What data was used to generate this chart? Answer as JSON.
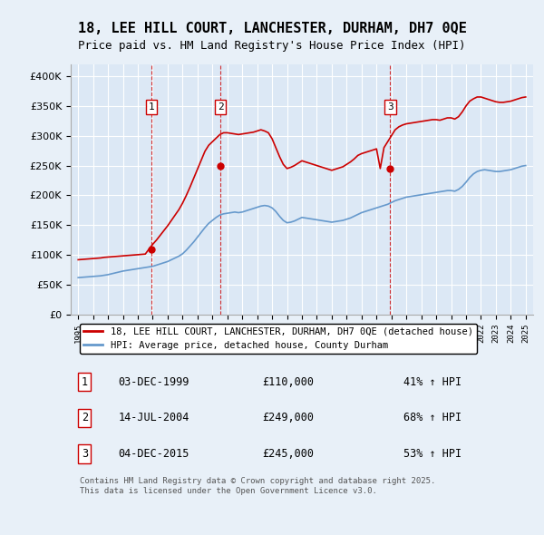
{
  "title": "18, LEE HILL COURT, LANCHESTER, DURHAM, DH7 0QE",
  "subtitle": "Price paid vs. HM Land Registry's House Price Index (HPI)",
  "background_color": "#e8f0f8",
  "plot_bg_color": "#dce8f5",
  "grid_color": "#ffffff",
  "legend_line1": "18, LEE HILL COURT, LANCHESTER, DURHAM, DH7 0QE (detached house)",
  "legend_line2": "HPI: Average price, detached house, County Durham",
  "footer": "Contains HM Land Registry data © Crown copyright and database right 2025.\nThis data is licensed under the Open Government Licence v3.0.",
  "transactions": [
    {
      "num": 1,
      "date": "03-DEC-1999",
      "price": 110000,
      "hpi_pct": "41% ↑ HPI",
      "x_year": 1999.92
    },
    {
      "num": 2,
      "date": "14-JUL-2004",
      "price": 249000,
      "hpi_pct": "68% ↑ HPI",
      "x_year": 2004.54
    },
    {
      "num": 3,
      "date": "04-DEC-2015",
      "price": 245000,
      "hpi_pct": "53% ↑ HPI",
      "x_year": 2015.92
    }
  ],
  "price_color": "#cc0000",
  "hpi_color": "#6699cc",
  "vline_color": "#cc0000",
  "ylim": [
    0,
    420000
  ],
  "yticks": [
    0,
    50000,
    100000,
    150000,
    200000,
    250000,
    300000,
    350000,
    400000
  ],
  "xlim_start": 1994.5,
  "xlim_end": 2025.5,
  "xticks": [
    1995,
    1996,
    1997,
    1998,
    1999,
    2000,
    2001,
    2002,
    2003,
    2004,
    2005,
    2006,
    2007,
    2008,
    2009,
    2010,
    2011,
    2012,
    2013,
    2014,
    2015,
    2016,
    2017,
    2018,
    2019,
    2020,
    2021,
    2022,
    2023,
    2024,
    2025
  ],
  "hpi_data": {
    "years": [
      1995,
      1995.25,
      1995.5,
      1995.75,
      1996,
      1996.25,
      1996.5,
      1996.75,
      1997,
      1997.25,
      1997.5,
      1997.75,
      1998,
      1998.25,
      1998.5,
      1998.75,
      1999,
      1999.25,
      1999.5,
      1999.75,
      2000,
      2000.25,
      2000.5,
      2000.75,
      2001,
      2001.25,
      2001.5,
      2001.75,
      2002,
      2002.25,
      2002.5,
      2002.75,
      2003,
      2003.25,
      2003.5,
      2003.75,
      2004,
      2004.25,
      2004.5,
      2004.75,
      2005,
      2005.25,
      2005.5,
      2005.75,
      2006,
      2006.25,
      2006.5,
      2006.75,
      2007,
      2007.25,
      2007.5,
      2007.75,
      2008,
      2008.25,
      2008.5,
      2008.75,
      2009,
      2009.25,
      2009.5,
      2009.75,
      2010,
      2010.25,
      2010.5,
      2010.75,
      2011,
      2011.25,
      2011.5,
      2011.75,
      2012,
      2012.25,
      2012.5,
      2012.75,
      2013,
      2013.25,
      2013.5,
      2013.75,
      2014,
      2014.25,
      2014.5,
      2014.75,
      2015,
      2015.25,
      2015.5,
      2015.75,
      2016,
      2016.25,
      2016.5,
      2016.75,
      2017,
      2017.25,
      2017.5,
      2017.75,
      2018,
      2018.25,
      2018.5,
      2018.75,
      2019,
      2019.25,
      2019.5,
      2019.75,
      2020,
      2020.25,
      2020.5,
      2020.75,
      2021,
      2021.25,
      2021.5,
      2021.75,
      2022,
      2022.25,
      2022.5,
      2022.75,
      2023,
      2023.25,
      2023.5,
      2023.75,
      2024,
      2024.25,
      2024.5,
      2024.75,
      2025
    ],
    "values": [
      62000,
      62500,
      63000,
      63500,
      64000,
      64500,
      65000,
      66000,
      67000,
      68500,
      70000,
      71500,
      73000,
      74000,
      75000,
      76000,
      77000,
      78000,
      79000,
      80000,
      81000,
      83000,
      85000,
      87000,
      89000,
      92000,
      95000,
      98000,
      102000,
      108000,
      115000,
      122000,
      130000,
      138000,
      146000,
      153000,
      158000,
      163000,
      167000,
      169000,
      170000,
      171000,
      172000,
      171000,
      172000,
      174000,
      176000,
      178000,
      180000,
      182000,
      183000,
      182000,
      179000,
      173000,
      165000,
      158000,
      154000,
      155000,
      157000,
      160000,
      163000,
      162000,
      161000,
      160000,
      159000,
      158000,
      157000,
      156000,
      155000,
      156000,
      157000,
      158000,
      160000,
      162000,
      165000,
      168000,
      171000,
      173000,
      175000,
      177000,
      179000,
      181000,
      183000,
      185000,
      188000,
      191000,
      193000,
      195000,
      197000,
      198000,
      199000,
      200000,
      201000,
      202000,
      203000,
      204000,
      205000,
      206000,
      207000,
      208000,
      208000,
      207000,
      210000,
      215000,
      222000,
      230000,
      236000,
      240000,
      242000,
      243000,
      242000,
      241000,
      240000,
      240000,
      241000,
      242000,
      243000,
      245000,
      247000,
      249000,
      250000
    ]
  },
  "price_data": {
    "years": [
      1995,
      1995.25,
      1995.5,
      1995.75,
      1996,
      1996.25,
      1996.5,
      1996.75,
      1997,
      1997.25,
      1997.5,
      1997.75,
      1998,
      1998.25,
      1998.5,
      1998.75,
      1999,
      1999.25,
      1999.5,
      1999.75,
      2000,
      2000.25,
      2000.5,
      2000.75,
      2001,
      2001.25,
      2001.5,
      2001.75,
      2002,
      2002.25,
      2002.5,
      2002.75,
      2003,
      2003.25,
      2003.5,
      2003.75,
      2004,
      2004.25,
      2004.5,
      2004.75,
      2005,
      2005.25,
      2005.5,
      2005.75,
      2006,
      2006.25,
      2006.5,
      2006.75,
      2007,
      2007.25,
      2007.5,
      2007.75,
      2008,
      2008.25,
      2008.5,
      2008.75,
      2009,
      2009.25,
      2009.5,
      2009.75,
      2010,
      2010.25,
      2010.5,
      2010.75,
      2011,
      2011.25,
      2011.5,
      2011.75,
      2012,
      2012.25,
      2012.5,
      2012.75,
      2013,
      2013.25,
      2013.5,
      2013.75,
      2014,
      2014.25,
      2014.5,
      2014.75,
      2015,
      2015.25,
      2015.5,
      2015.75,
      2016,
      2016.25,
      2016.5,
      2016.75,
      2017,
      2017.25,
      2017.5,
      2017.75,
      2018,
      2018.25,
      2018.5,
      2018.75,
      2019,
      2019.25,
      2019.5,
      2019.75,
      2020,
      2020.25,
      2020.5,
      2020.75,
      2021,
      2021.25,
      2021.5,
      2021.75,
      2022,
      2022.25,
      2022.5,
      2022.75,
      2023,
      2023.25,
      2023.5,
      2023.75,
      2024,
      2024.25,
      2024.5,
      2024.75,
      2025
    ],
    "values": [
      92000,
      92500,
      93000,
      93500,
      94000,
      94500,
      95000,
      96000,
      96500,
      97000,
      97500,
      98000,
      98500,
      99000,
      99500,
      100000,
      100500,
      101000,
      101500,
      110000,
      118000,
      125000,
      133000,
      141000,
      149000,
      158000,
      167000,
      176000,
      187000,
      200000,
      214000,
      229000,
      244000,
      259000,
      274000,
      284000,
      290000,
      296000,
      302000,
      305000,
      305000,
      304000,
      303000,
      302000,
      303000,
      304000,
      305000,
      306000,
      308000,
      310000,
      308000,
      305000,
      295000,
      280000,
      265000,
      252000,
      245000,
      247000,
      250000,
      254000,
      258000,
      256000,
      254000,
      252000,
      250000,
      248000,
      246000,
      244000,
      242000,
      244000,
      246000,
      248000,
      252000,
      256000,
      261000,
      267000,
      270000,
      272000,
      274000,
      276000,
      278000,
      245000,
      280000,
      290000,
      300000,
      310000,
      315000,
      318000,
      320000,
      321000,
      322000,
      323000,
      324000,
      325000,
      326000,
      327000,
      327000,
      326000,
      328000,
      330000,
      330000,
      328000,
      332000,
      340000,
      350000,
      358000,
      362000,
      365000,
      365000,
      363000,
      361000,
      359000,
      357000,
      356000,
      356000,
      357000,
      358000,
      360000,
      362000,
      364000,
      365000
    ]
  }
}
